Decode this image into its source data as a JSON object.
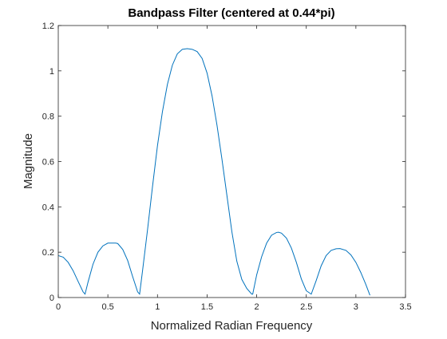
{
  "chart_data": {
    "type": "line",
    "title": "Bandpass Filter (centered at 0.44*pi)",
    "xlabel": "Normalized Radian Frequency",
    "ylabel": "Magnitude",
    "xlim": [
      0,
      3.5
    ],
    "ylim": [
      0,
      1.2
    ],
    "xticks": [
      0,
      0.5,
      1,
      1.5,
      2,
      2.5,
      3,
      3.5
    ],
    "xtick_labels": [
      "0",
      "0.5",
      "1",
      "1.5",
      "2",
      "2.5",
      "3",
      "3.5"
    ],
    "yticks": [
      0,
      0.2,
      0.4,
      0.6,
      0.8,
      1,
      1.2
    ],
    "ytick_labels": [
      "0",
      "0.2",
      "0.4",
      "0.6",
      "0.8",
      "1",
      "1.2"
    ],
    "grid": false,
    "box": true,
    "line_color": "#0072bd",
    "series": [
      {
        "x": [
          0,
          0.05,
          0.1,
          0.15,
          0.2,
          0.25,
          0.27,
          0.3,
          0.35,
          0.4,
          0.45,
          0.5,
          0.55,
          0.58,
          0.6,
          0.65,
          0.7,
          0.75,
          0.8,
          0.82,
          0.85,
          0.9,
          0.95,
          1.0,
          1.05,
          1.1,
          1.15,
          1.2,
          1.25,
          1.3,
          1.35,
          1.4,
          1.45,
          1.5,
          1.55,
          1.6,
          1.65,
          1.7,
          1.75,
          1.8,
          1.85,
          1.9,
          1.95,
          1.96,
          2.0,
          2.05,
          2.1,
          2.15,
          2.2,
          2.22,
          2.25,
          2.3,
          2.35,
          2.4,
          2.45,
          2.5,
          2.55,
          2.6,
          2.65,
          2.7,
          2.75,
          2.8,
          2.84,
          2.9,
          2.95,
          3.0,
          3.05,
          3.1,
          3.1416
        ],
        "y": [
          0.185,
          0.178,
          0.155,
          0.118,
          0.071,
          0.025,
          0.015,
          0.068,
          0.147,
          0.2,
          0.228,
          0.24,
          0.24,
          0.24,
          0.238,
          0.212,
          0.163,
          0.092,
          0.025,
          0.015,
          0.12,
          0.3,
          0.49,
          0.67,
          0.82,
          0.94,
          1.025,
          1.075,
          1.095,
          1.098,
          1.095,
          1.085,
          1.055,
          0.99,
          0.89,
          0.76,
          0.61,
          0.45,
          0.29,
          0.16,
          0.08,
          0.04,
          0.015,
          0.015,
          0.1,
          0.18,
          0.24,
          0.275,
          0.287,
          0.288,
          0.284,
          0.262,
          0.218,
          0.155,
          0.082,
          0.03,
          0.015,
          0.075,
          0.14,
          0.185,
          0.208,
          0.215,
          0.216,
          0.208,
          0.188,
          0.155,
          0.11,
          0.058,
          0.01
        ]
      }
    ]
  }
}
